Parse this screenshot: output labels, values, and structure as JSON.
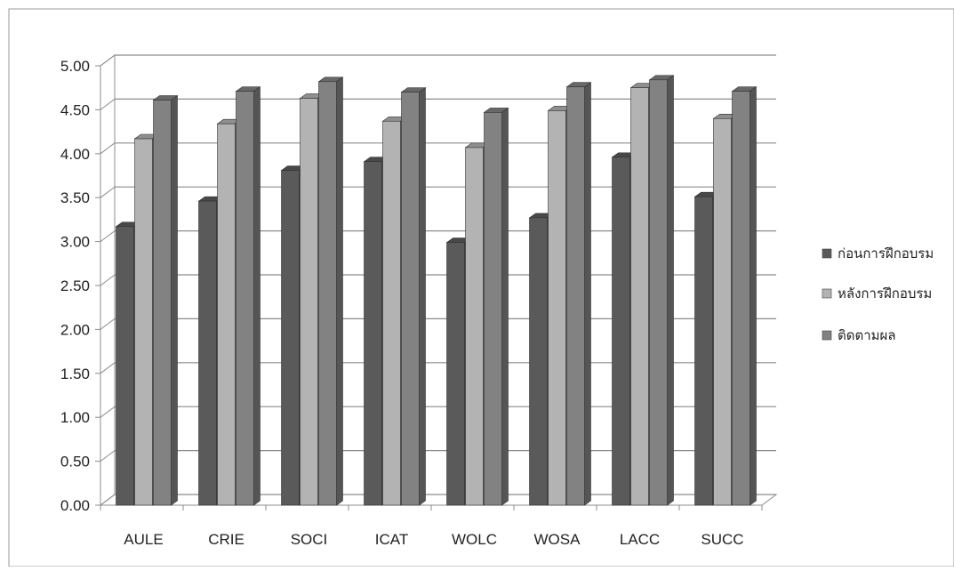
{
  "chart_data": {
    "type": "bar",
    "title": "",
    "xlabel": "",
    "ylabel": "",
    "ylim": [
      0,
      5
    ],
    "yticks": [
      "0.00",
      "0.50",
      "1.00",
      "1.50",
      "2.00",
      "2.50",
      "3.00",
      "3.50",
      "4.00",
      "4.50",
      "5.00"
    ],
    "grid": true,
    "legend_position": "right",
    "categories": [
      "AULE",
      "CRIE",
      "SOCI",
      "ICAT",
      "WOLC",
      "WOSA",
      "LACC",
      "SUCC"
    ],
    "series": [
      {
        "name": "ก่อนการฝึกอบรม",
        "color": "#5a5a5a",
        "values": [
          3.17,
          3.46,
          3.81,
          3.91,
          2.99,
          3.27,
          3.96,
          3.51
        ]
      },
      {
        "name": "หลังการฝึกอบรม",
        "color": "#b3b3b3",
        "values": [
          4.17,
          4.34,
          4.63,
          4.37,
          4.07,
          4.49,
          4.75,
          4.4
        ]
      },
      {
        "name": "ติดตามผล",
        "color": "#828282",
        "values": [
          4.61,
          4.71,
          4.82,
          4.7,
          4.47,
          4.76,
          4.84,
          4.71
        ]
      }
    ]
  }
}
